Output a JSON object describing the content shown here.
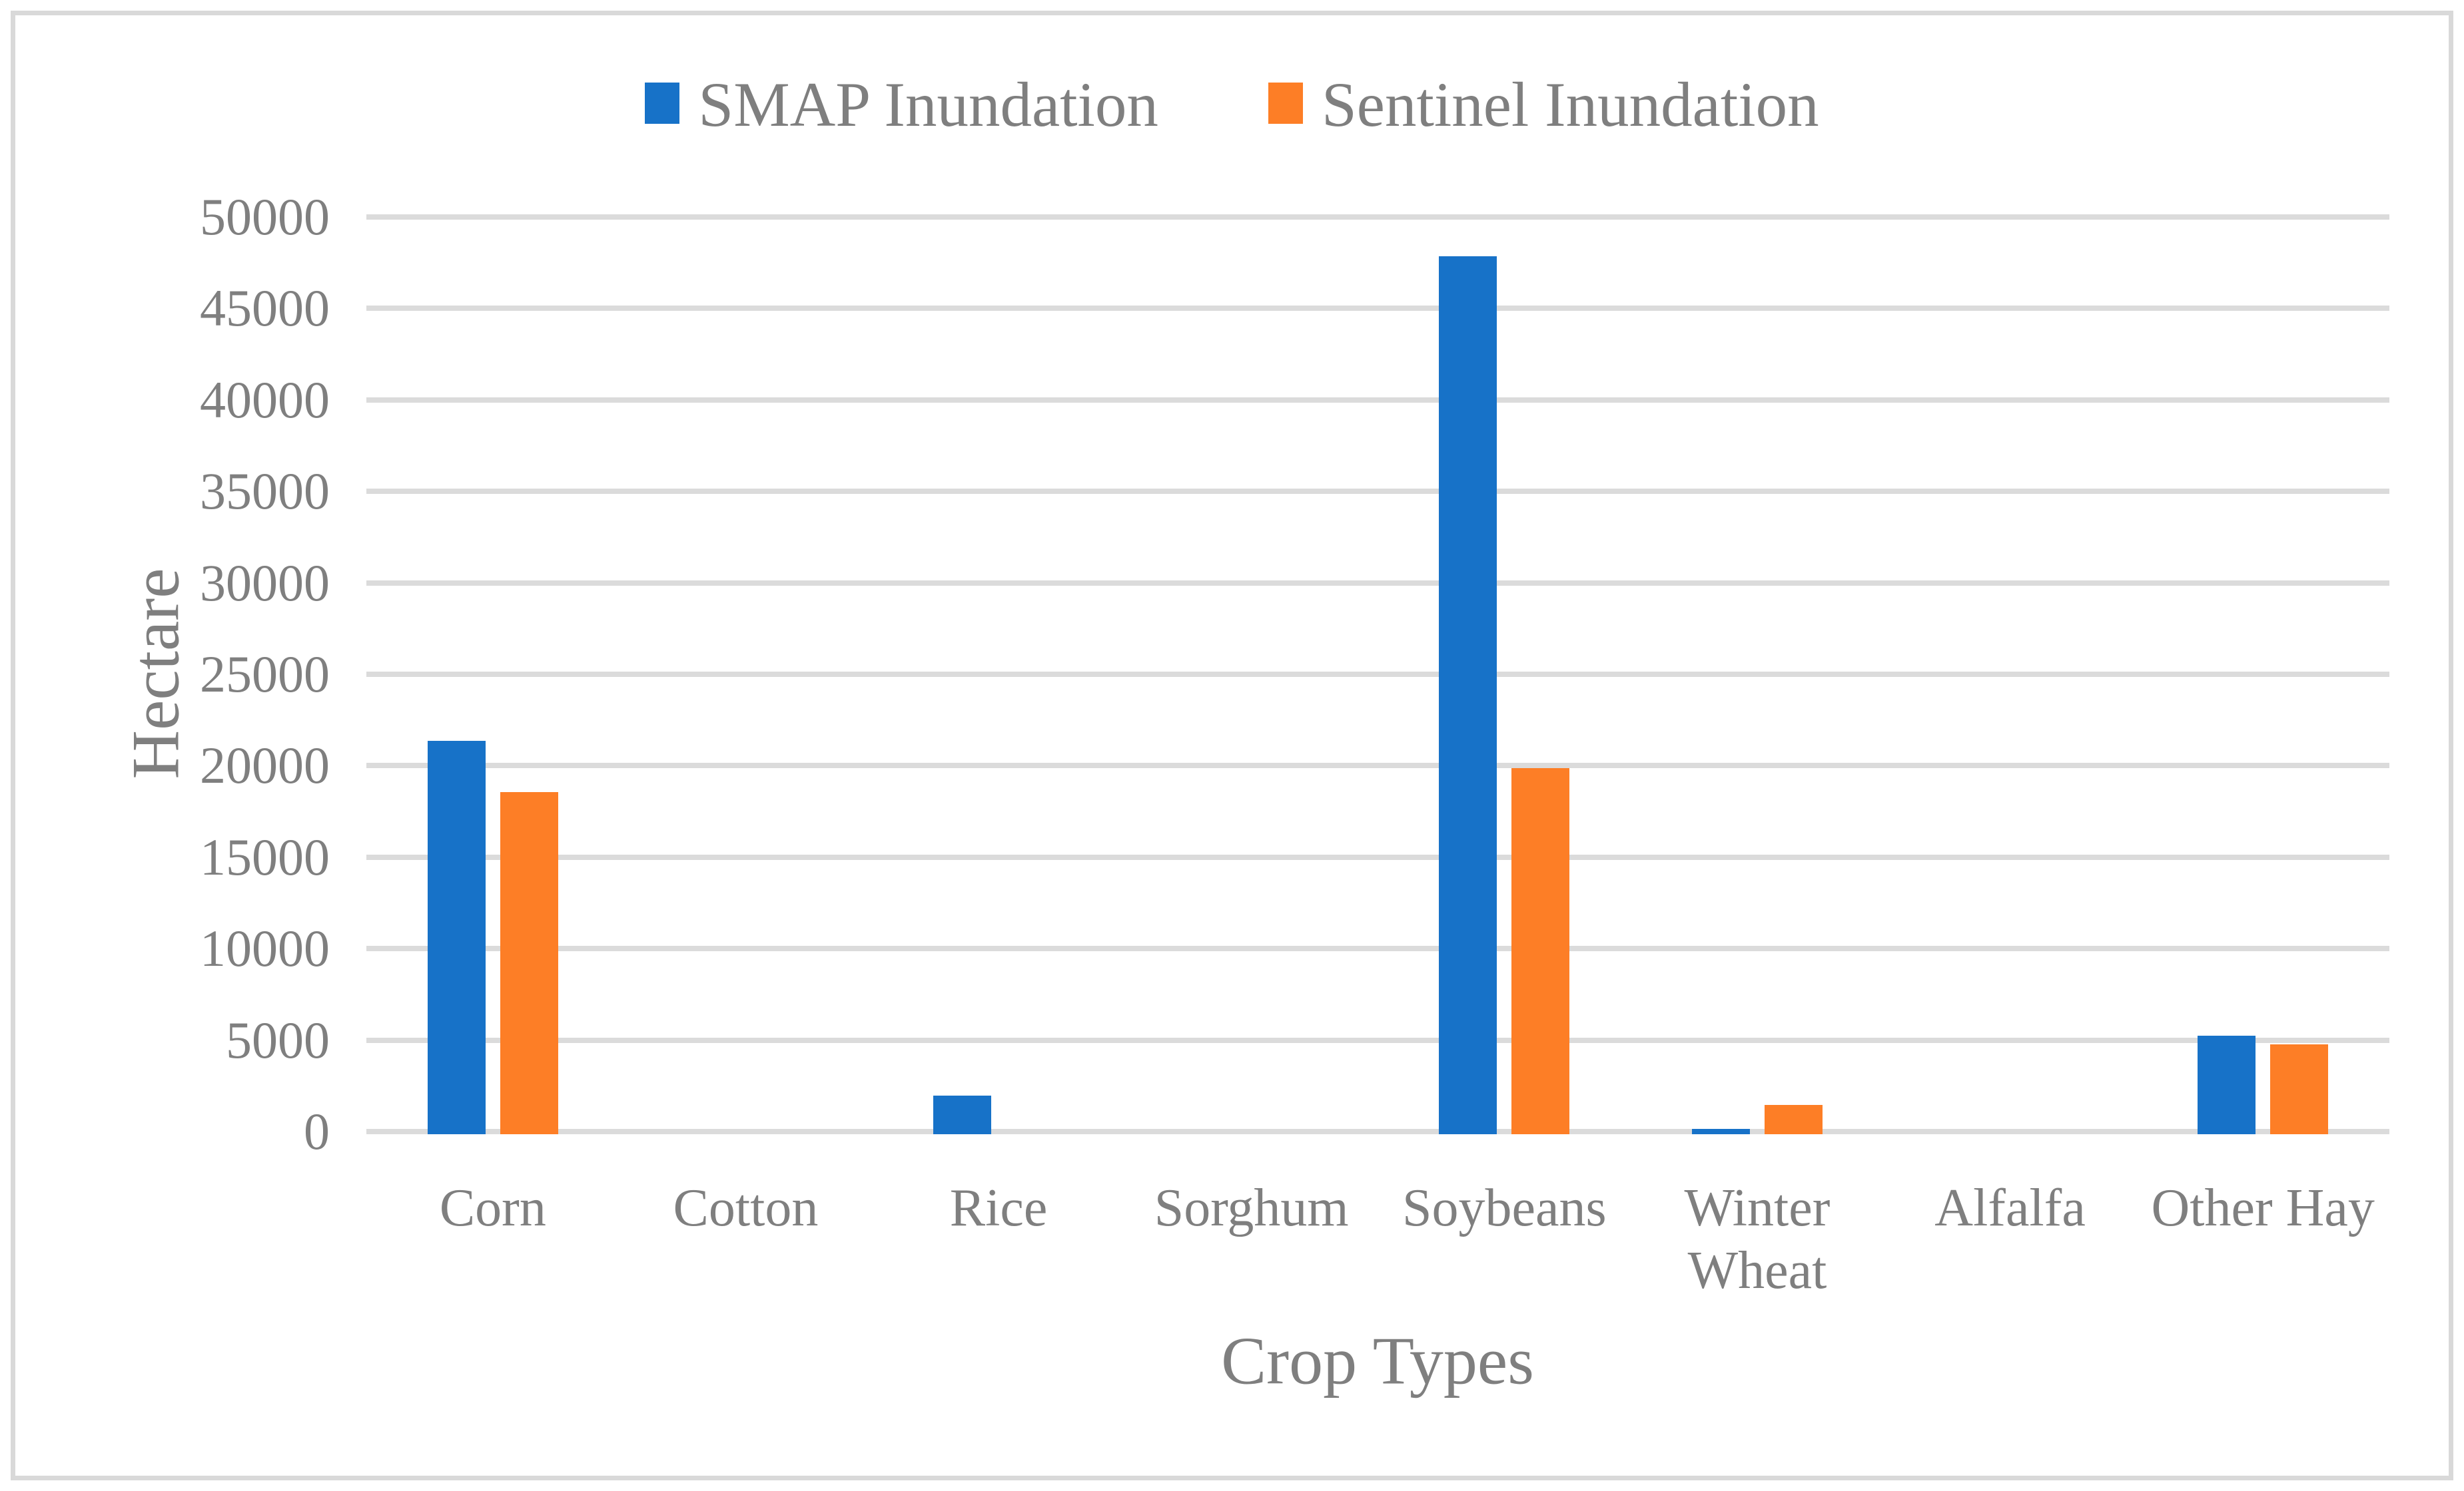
{
  "chart_data": {
    "type": "bar",
    "categories": [
      "Corn",
      "Cotton",
      "Rice",
      "Sorghum",
      "Soybeans",
      "Winter Wheat",
      "Alfalfa",
      "Other Hay"
    ],
    "series": [
      {
        "name": "SMAP Inundation",
        "color": "#1772C8",
        "values": [
          21500,
          0,
          2100,
          0,
          48000,
          300,
          0,
          5400
        ]
      },
      {
        "name": "Sentinel Inundation",
        "color": "#FD7E26",
        "values": [
          18700,
          0,
          0,
          0,
          20000,
          1600,
          0,
          4900
        ]
      }
    ],
    "xlabel": "Crop Types",
    "ylabel": "Hectare",
    "ylim": [
      0,
      50000
    ],
    "ytick_step": 5000,
    "grid": true,
    "legend_position": "top",
    "text_color": "#7F7F7F",
    "gridline_color": "#DBDBDB",
    "border_color": "#D9D9D9"
  }
}
